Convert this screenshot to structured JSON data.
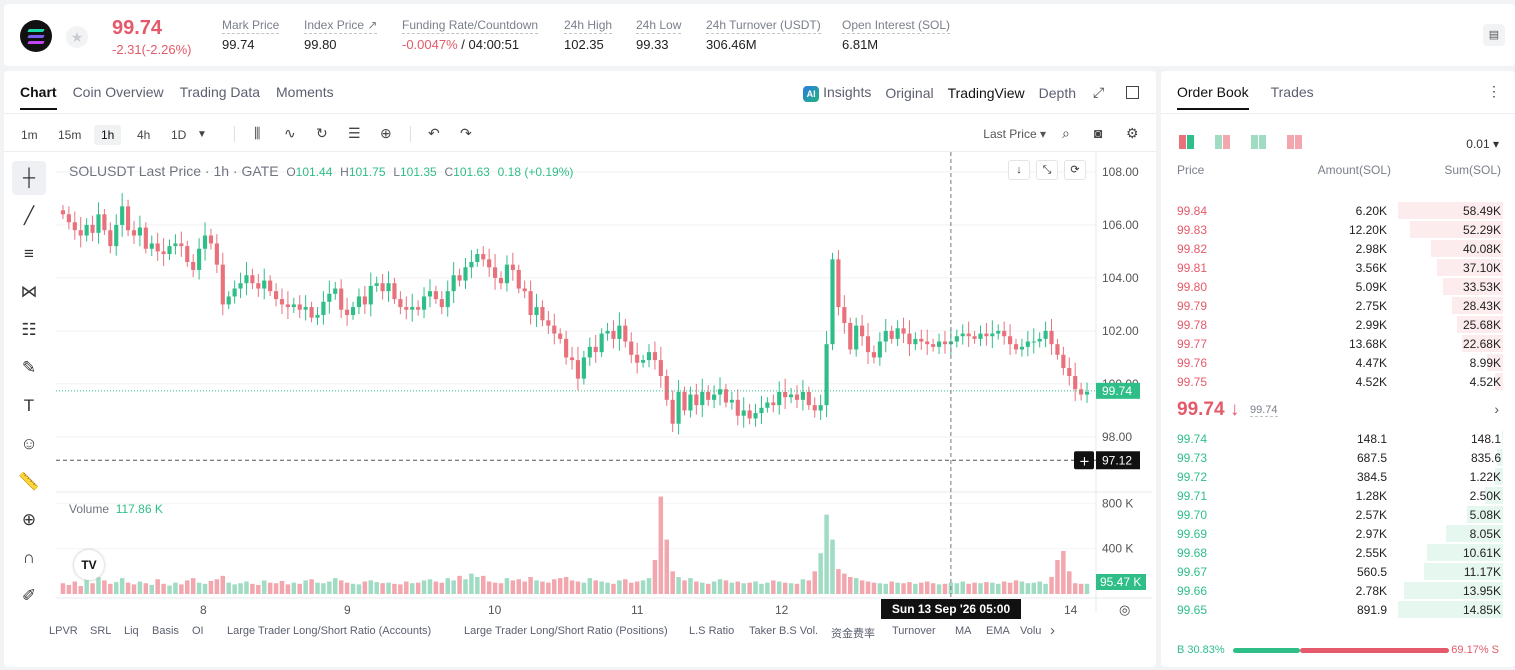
{
  "header": {
    "last_price": "99.74",
    "change": "-2.31(-2.26%)",
    "stats": [
      {
        "label": "Mark Price",
        "value": "99.74"
      },
      {
        "label": "Index Price ↗",
        "value": "99.80"
      },
      {
        "label": "Funding Rate/Countdown",
        "value_neg": "-0.0047%",
        "value": " / 04:00:51"
      },
      {
        "label": "24h High",
        "value": "102.35"
      },
      {
        "label": "24h Low",
        "value": "99.33"
      },
      {
        "label": "24h Turnover (USDT)",
        "value": "306.46M"
      },
      {
        "label": "Open Interest (SOL)",
        "value": "6.81M"
      }
    ]
  },
  "chart_panel": {
    "tabs": [
      "Chart",
      "Coin Overview",
      "Trading Data",
      "Moments"
    ],
    "view_tabs": [
      "Insights",
      "Original",
      "TradingView",
      "Depth"
    ],
    "timeframes": [
      "1m",
      "15m",
      "1h",
      "4h",
      "1D"
    ],
    "price_source": "Last Price ▾",
    "legend": {
      "symbol": "SOLUSDT Last Price · 1h · GATE",
      "o_label": "O",
      "o": "101.44",
      "h_label": "H",
      "h": "101.75",
      "l_label": "L",
      "l": "101.35",
      "c_label": "C",
      "c": "101.63",
      "change": "0.18 (+0.19%)"
    },
    "volume_legend": {
      "label": "Volume",
      "value": "117.86 K"
    },
    "crosshair_time": "Sun 13 Sep '26   05:00",
    "indicators": [
      "LPVR",
      "SRL",
      "Liq",
      "Basis",
      "OI",
      "Large Trader Long/Short Ratio (Accounts)",
      "Large Trader Long/Short Ratio (Positions)",
      "L.S Ratio",
      "Taker B.S Vol.",
      "资金费率",
      "Turnover",
      "MA",
      "EMA",
      "Volu"
    ]
  },
  "chart_data": {
    "type": "candlestick",
    "y_ticks": [
      "108.00",
      "106.00",
      "104.00",
      "102.00",
      "100.00",
      "98.00"
    ],
    "ylim": [
      96.3,
      108.6
    ],
    "volume_ticks": [
      "800 K",
      "400 K"
    ],
    "x_ticks": [
      "8",
      "9",
      "10",
      "11",
      "12",
      "14"
    ],
    "last_price_label": "99.74",
    "crosshair_price_label": "97.12",
    "volume_last_label": "95.47 K",
    "colors": {
      "up": "#2fbe88",
      "down": "#e8717c",
      "vol_up": "#9fdcc3",
      "vol_down": "#f2a7ae"
    },
    "closes": [
      106.4,
      106.1,
      105.8,
      105.6,
      106.0,
      105.7,
      106.4,
      105.8,
      105.2,
      106.0,
      106.7,
      105.8,
      105.6,
      105.9,
      105.1,
      105.3,
      105.0,
      104.9,
      105.2,
      105.3,
      105.2,
      104.6,
      104.3,
      105.1,
      105.6,
      105.3,
      104.5,
      103.0,
      103.3,
      103.6,
      103.8,
      104.1,
      103.8,
      103.6,
      103.9,
      103.5,
      103.2,
      103.0,
      102.9,
      103.0,
      102.8,
      102.9,
      102.5,
      102.6,
      103.1,
      103.4,
      103.6,
      102.8,
      102.6,
      102.9,
      103.3,
      103.0,
      103.7,
      103.8,
      103.5,
      103.8,
      103.2,
      102.9,
      102.8,
      102.9,
      102.8,
      103.3,
      103.5,
      103.2,
      102.9,
      103.5,
      104.1,
      103.9,
      104.4,
      104.6,
      104.9,
      104.7,
      104.4,
      104.0,
      103.8,
      104.5,
      104.3,
      103.6,
      103.5,
      102.6,
      102.9,
      102.4,
      102.2,
      101.9,
      101.7,
      101.0,
      100.9,
      100.2,
      101.0,
      101.4,
      101.2,
      101.9,
      102.0,
      101.7,
      102.2,
      101.6,
      101.1,
      100.8,
      100.9,
      101.2,
      100.9,
      100.3,
      99.4,
      98.5,
      99.7,
      99.0,
      99.6,
      99.2,
      99.7,
      99.4,
      99.6,
      99.8,
      99.3,
      99.4,
      98.8,
      99.0,
      98.7,
      98.9,
      99.1,
      99.3,
      99.2,
      99.7,
      99.5,
      99.6,
      99.4,
      99.7,
      99.2,
      99.0,
      99.2,
      101.5,
      104.7,
      102.9,
      102.3,
      101.3,
      102.2,
      101.8,
      101.2,
      101.0,
      101.6,
      102.0,
      101.7,
      102.1,
      101.9,
      101.5,
      101.7,
      101.6,
      101.5,
      101.4,
      101.6,
      101.5,
      101.6,
      101.8,
      101.9,
      101.8,
      101.7,
      101.9,
      101.8,
      101.9,
      102.0,
      101.8,
      101.5,
      101.3,
      101.4,
      101.6,
      101.6,
      101.7,
      102.0,
      101.5,
      101.1,
      100.6,
      100.3,
      99.8,
      99.6,
      99.7
    ],
    "volumes_k": [
      95,
      80,
      110,
      70,
      130,
      95,
      150,
      120,
      90,
      105,
      140,
      100,
      85,
      110,
      95,
      80,
      130,
      90,
      75,
      100,
      85,
      120,
      140,
      100,
      90,
      115,
      130,
      160,
      100,
      85,
      95,
      110,
      90,
      80,
      120,
      100,
      95,
      115,
      85,
      100,
      90,
      120,
      130,
      100,
      95,
      110,
      140,
      120,
      100,
      90,
      85,
      110,
      120,
      105,
      95,
      100,
      90,
      85,
      110,
      95,
      100,
      120,
      130,
      110,
      100,
      140,
      120,
      160,
      130,
      180,
      150,
      160,
      110,
      100,
      95,
      140,
      120,
      130,
      110,
      150,
      120,
      110,
      100,
      130,
      140,
      150,
      120,
      110,
      100,
      140,
      120,
      110,
      100,
      90,
      120,
      130,
      100,
      110,
      120,
      140,
      300,
      860,
      480,
      200,
      150,
      120,
      140,
      110,
      100,
      90,
      110,
      130,
      120,
      100,
      110,
      95,
      100,
      110,
      90,
      100,
      120,
      110,
      100,
      95,
      90,
      130,
      120,
      200,
      360,
      700,
      480,
      220,
      180,
      150,
      140,
      120,
      110,
      100,
      95,
      90,
      110,
      100,
      95,
      105,
      90,
      100,
      110,
      95,
      85,
      90,
      100,
      95,
      110,
      90,
      100,
      95,
      105,
      100,
      90,
      110,
      100,
      120,
      110,
      95,
      100,
      110,
      90,
      150,
      300,
      380,
      200,
      95
    ]
  },
  "order_book": {
    "tabs": [
      "Order Book",
      "Trades"
    ],
    "precision": "0.01 ▾",
    "headers": {
      "price": "Price",
      "amount": "Amount(SOL)",
      "sum": "Sum(SOL)"
    },
    "asks": [
      {
        "price": "99.84",
        "amount": "6.20K",
        "sum": "58.49K",
        "depth": 1.0
      },
      {
        "price": "99.83",
        "amount": "12.20K",
        "sum": "52.29K",
        "depth": 0.89
      },
      {
        "price": "99.82",
        "amount": "2.98K",
        "sum": "40.08K",
        "depth": 0.69
      },
      {
        "price": "99.81",
        "amount": "3.56K",
        "sum": "37.10K",
        "depth": 0.63
      },
      {
        "price": "99.80",
        "amount": "5.09K",
        "sum": "33.53K",
        "depth": 0.57
      },
      {
        "price": "99.79",
        "amount": "2.75K",
        "sum": "28.43K",
        "depth": 0.49
      },
      {
        "price": "99.78",
        "amount": "2.99K",
        "sum": "25.68K",
        "depth": 0.44
      },
      {
        "price": "99.77",
        "amount": "13.68K",
        "sum": "22.68K",
        "depth": 0.39
      },
      {
        "price": "99.76",
        "amount": "4.47K",
        "sum": "8.99K",
        "depth": 0.15
      },
      {
        "price": "99.75",
        "amount": "4.52K",
        "sum": "4.52K",
        "depth": 0.08
      }
    ],
    "mid_price": "99.74 ↓",
    "mark_price": "99.74",
    "bids": [
      {
        "price": "99.74",
        "amount": "148.1",
        "sum": "148.1",
        "depth": 0.01
      },
      {
        "price": "99.73",
        "amount": "687.5",
        "sum": "835.6",
        "depth": 0.06
      },
      {
        "price": "99.72",
        "amount": "384.5",
        "sum": "1.22K",
        "depth": 0.08
      },
      {
        "price": "99.71",
        "amount": "1.28K",
        "sum": "2.50K",
        "depth": 0.17
      },
      {
        "price": "99.70",
        "amount": "2.57K",
        "sum": "5.08K",
        "depth": 0.34
      },
      {
        "price": "99.69",
        "amount": "2.97K",
        "sum": "8.05K",
        "depth": 0.54
      },
      {
        "price": "99.68",
        "amount": "2.55K",
        "sum": "10.61K",
        "depth": 0.72
      },
      {
        "price": "99.67",
        "amount": "560.5",
        "sum": "11.17K",
        "depth": 0.75
      },
      {
        "price": "99.66",
        "amount": "2.78K",
        "sum": "13.95K",
        "depth": 0.94
      },
      {
        "price": "99.65",
        "amount": "891.9",
        "sum": "14.85K",
        "depth": 1.0
      }
    ],
    "buy_ratio": "B 30.83%",
    "sell_ratio": "69.17% S",
    "buy_fraction": 0.3083
  }
}
